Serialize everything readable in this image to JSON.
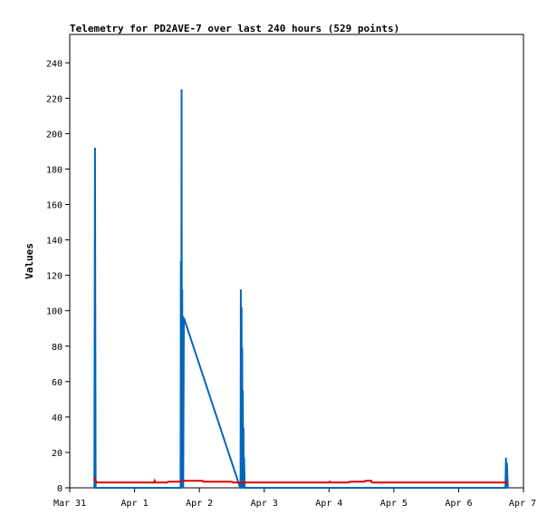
{
  "chart_data": {
    "type": "line",
    "title": "Telemetry for PD2AVE-7 over last 240 hours (529 points)",
    "xlabel": "",
    "ylabel": "Values",
    "x_ticks": [
      "Mar 31",
      "Apr 1",
      "Apr 2",
      "Apr 3",
      "Apr 4",
      "Apr 5",
      "Apr 6",
      "Apr 7"
    ],
    "y_ticks": [
      "0",
      "20",
      "40",
      "60",
      "80",
      "100",
      "120",
      "140",
      "160",
      "180",
      "200",
      "220",
      "240"
    ],
    "xlim": [
      0,
      7
    ],
    "ylim": [
      0,
      256
    ],
    "grid": false,
    "legend": "none",
    "colors": {
      "blue": "#0066bb",
      "red": "#dd0000"
    },
    "series": [
      {
        "color": "#0066bb",
        "points": [
          [
            0.38,
            0
          ],
          [
            0.39,
            192
          ],
          [
            0.4,
            0
          ],
          [
            1.71,
            0
          ],
          [
            1.715,
            128
          ],
          [
            1.72,
            0
          ],
          [
            1.725,
            225
          ],
          [
            1.73,
            0
          ],
          [
            1.735,
            112
          ],
          [
            1.74,
            0
          ],
          [
            1.745,
            97
          ],
          [
            1.75,
            0
          ],
          [
            1.76,
            96
          ],
          [
            2.63,
            0
          ],
          [
            2.635,
            0
          ],
          [
            2.64,
            112
          ],
          [
            2.645,
            0
          ],
          [
            2.65,
            102
          ],
          [
            2.655,
            0
          ],
          [
            2.66,
            79
          ],
          [
            2.665,
            0
          ],
          [
            2.67,
            55
          ],
          [
            2.675,
            0
          ],
          [
            2.68,
            34
          ],
          [
            2.685,
            0
          ],
          [
            2.69,
            17
          ],
          [
            2.7,
            0
          ],
          [
            6.72,
            0
          ],
          [
            6.73,
            17
          ],
          [
            6.74,
            0
          ],
          [
            6.745,
            14
          ],
          [
            6.75,
            8
          ],
          [
            6.76,
            0
          ]
        ]
      },
      {
        "color": "#dd0000",
        "points": [
          [
            0.38,
            6
          ],
          [
            0.39,
            5
          ],
          [
            0.4,
            4
          ],
          [
            0.42,
            3
          ],
          [
            1.3,
            3
          ],
          [
            1.31,
            4
          ],
          [
            1.32,
            3
          ],
          [
            1.5,
            3
          ],
          [
            1.52,
            3.5
          ],
          [
            1.7,
            3.5
          ],
          [
            1.72,
            4
          ],
          [
            2.05,
            4
          ],
          [
            2.06,
            3.5
          ],
          [
            2.5,
            3.5
          ],
          [
            2.52,
            3
          ],
          [
            4.0,
            3
          ],
          [
            4.01,
            3.5
          ],
          [
            4.02,
            3
          ],
          [
            4.3,
            3
          ],
          [
            4.32,
            3.5
          ],
          [
            4.55,
            3.5
          ],
          [
            4.56,
            4
          ],
          [
            4.65,
            4
          ],
          [
            4.66,
            3
          ],
          [
            6.7,
            3
          ],
          [
            6.76,
            3
          ]
        ]
      }
    ]
  }
}
